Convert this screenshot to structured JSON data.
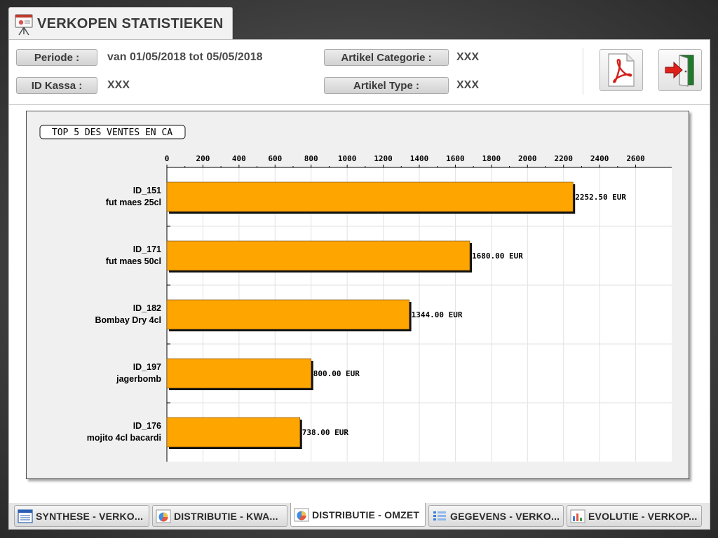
{
  "window": {
    "title": "VERKOPEN STATISTIEKEN"
  },
  "filters": {
    "periode": {
      "label": "Periode :",
      "value": "van 01/05/2018 tot 05/05/2018"
    },
    "id_kassa": {
      "label": "ID Kassa :",
      "value": "XXX"
    },
    "artikel_categorie": {
      "label": "Artikel Categorie :",
      "value": "XXX"
    },
    "artikel_type": {
      "label": "Artikel Type :",
      "value": "XXX"
    }
  },
  "actions": {
    "pdf_icon": "pdf-icon",
    "exit_icon": "exit-door-icon"
  },
  "chart_data": {
    "type": "bar",
    "orientation": "horizontal",
    "title": "TOP 5 DES VENTES EN CA",
    "categories": [
      [
        "ID_151",
        "fut maes 25cl"
      ],
      [
        "ID_171",
        "fut maes 50cl"
      ],
      [
        "ID_182",
        "Bombay Dry 4cl"
      ],
      [
        "ID_197",
        "jagerbomb"
      ],
      [
        "ID_176",
        "mojito 4cl bacardi"
      ]
    ],
    "values": [
      2252.5,
      1680.0,
      1344.0,
      800.0,
      738.0
    ],
    "data_labels": [
      "2252.50 EUR",
      "1680.00 EUR",
      "1344.00 EUR",
      "800.00 EUR",
      "738.00 EUR"
    ],
    "x_ticks": [
      0,
      200,
      400,
      600,
      800,
      1000,
      1200,
      1400,
      1600,
      1800,
      2000,
      2200,
      2400,
      2600
    ],
    "xlim": [
      0,
      2800
    ],
    "axis_position": "top",
    "grid": true,
    "bar_color": "#ffa500"
  },
  "tabs": [
    {
      "label": "SYNTHESE - VERKO...",
      "icon": "list-report-icon",
      "active": false
    },
    {
      "label": "DISTRIBUTIE - KWA...",
      "icon": "pie-chart-icon",
      "active": false
    },
    {
      "label": "DISTRIBUTIE - OMZET",
      "icon": "pie-chart-icon",
      "active": true
    },
    {
      "label": "GEGEVENS - VERKO...",
      "icon": "table-list-icon",
      "active": false
    },
    {
      "label": "EVOLUTIE - VERKOP...",
      "icon": "bar-chart-icon",
      "active": false
    }
  ]
}
